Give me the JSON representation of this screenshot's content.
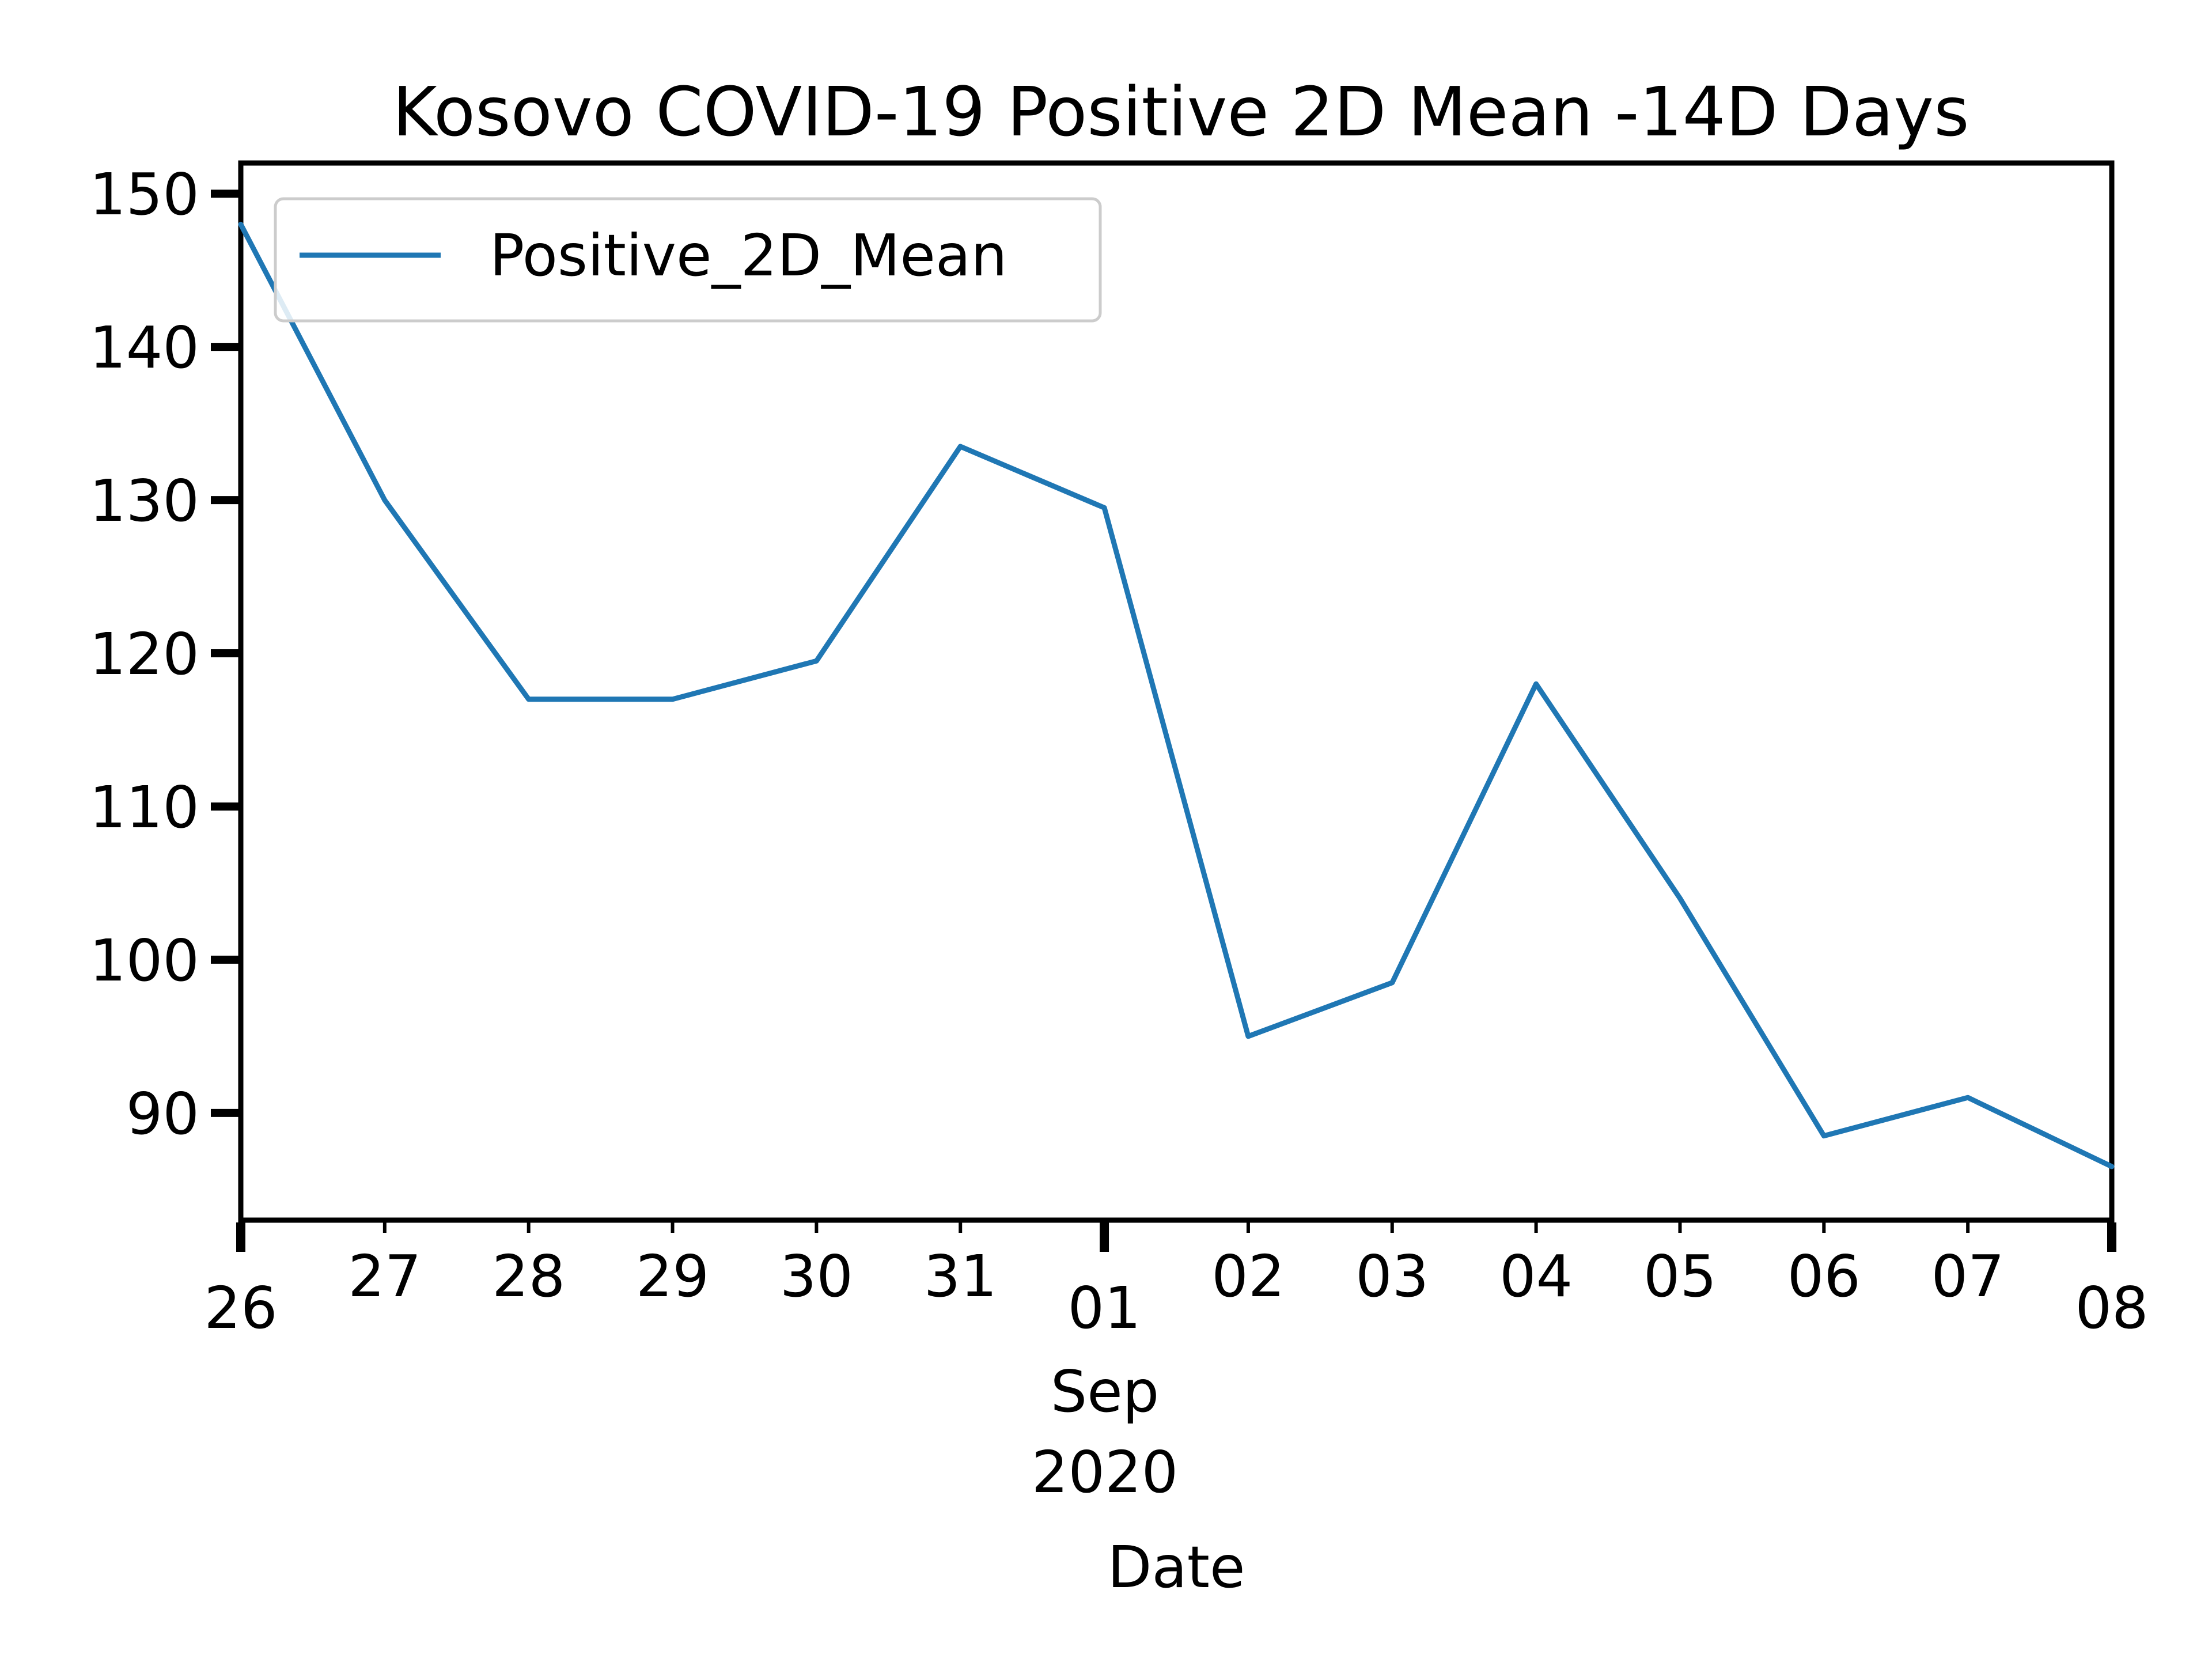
{
  "chart_data": {
    "type": "line",
    "title": "Kosovo COVID-19 Positive 2D Mean -14D Days",
    "xlabel": "Date",
    "ylabel": "",
    "x_tick_labels": [
      "26",
      "27",
      "28",
      "29",
      "30",
      "31",
      "01",
      "02",
      "03",
      "04",
      "05",
      "06",
      "07",
      "08"
    ],
    "x_month_label": "Sep",
    "x_year_label": "2020",
    "x_range": [
      "2020-08-26",
      "2020-09-08"
    ],
    "ylim": [
      83,
      152
    ],
    "y_ticks": [
      90,
      100,
      110,
      120,
      130,
      140,
      150
    ],
    "grid": false,
    "legend": "top-left",
    "series": [
      {
        "name": "Positive_2D_Mean",
        "color": "#1f77b4",
        "x": [
          "2020-08-26",
          "2020-08-27",
          "2020-08-28",
          "2020-08-29",
          "2020-08-30",
          "2020-08-31",
          "2020-09-01",
          "2020-09-02",
          "2020-09-03",
          "2020-09-04",
          "2020-09-05",
          "2020-09-06",
          "2020-09-07",
          "2020-09-08"
        ],
        "values": [
          148,
          130,
          117,
          117,
          119.5,
          133.5,
          129.5,
          95,
          98.5,
          118,
          104,
          88.5,
          91,
          86.5
        ]
      }
    ]
  }
}
